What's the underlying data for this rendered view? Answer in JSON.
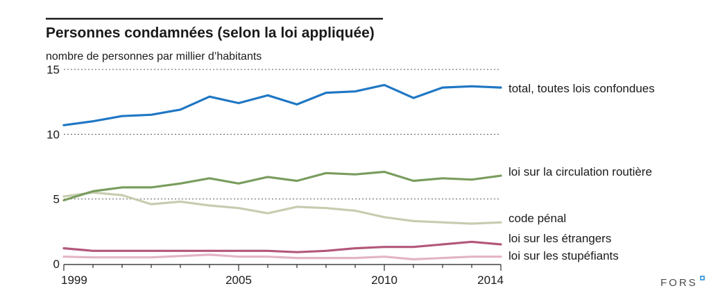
{
  "brand": "FORS",
  "brand_accent_color": "#2a8fd6",
  "chart_data": {
    "type": "line",
    "title": "Personnes condamnées (selon la loi appliquée)",
    "ylabel": "nombre de personnes par millier d’habitants",
    "xlabel": "",
    "x": [
      1999,
      2000,
      2001,
      2002,
      2003,
      2004,
      2005,
      2006,
      2007,
      2008,
      2009,
      2010,
      2011,
      2012,
      2013,
      2014
    ],
    "xlim": [
      1999,
      2014
    ],
    "ylim": [
      0,
      15
    ],
    "x_ticks": [
      1999,
      2005,
      2010,
      2014
    ],
    "y_ticks": [
      0,
      5,
      10,
      15
    ],
    "gridlines_y": [
      5,
      10,
      15
    ],
    "series": [
      {
        "name": "total, toutes lois confondues",
        "color": "#1f77c4",
        "values": [
          10.7,
          11.0,
          11.4,
          11.5,
          11.9,
          12.9,
          12.4,
          13.0,
          12.3,
          13.2,
          13.3,
          13.8,
          12.8,
          13.6,
          13.7,
          13.6
        ]
      },
      {
        "name": "loi sur la circulation routière",
        "color": "#7a9d5e",
        "values": [
          4.9,
          5.6,
          5.9,
          5.9,
          6.2,
          6.6,
          6.2,
          6.7,
          6.4,
          7.0,
          6.9,
          7.1,
          6.4,
          6.6,
          6.5,
          6.8
        ]
      },
      {
        "name": "code pénal",
        "color": "#c6cdb0",
        "values": [
          5.2,
          5.5,
          5.3,
          4.6,
          4.8,
          4.5,
          4.3,
          3.9,
          4.4,
          4.3,
          4.1,
          3.6,
          3.3,
          3.2,
          3.1,
          3.2
        ]
      },
      {
        "name": "loi sur les étrangers",
        "color": "#b3577a",
        "values": [
          1.2,
          1.0,
          1.0,
          1.0,
          1.0,
          1.0,
          1.0,
          1.0,
          0.9,
          1.0,
          1.2,
          1.3,
          1.3,
          1.5,
          1.7,
          1.5
        ]
      },
      {
        "name": "loi sur les stupéfiants",
        "color": "#e3b4c6",
        "values": [
          0.55,
          0.5,
          0.5,
          0.5,
          0.6,
          0.7,
          0.55,
          0.55,
          0.45,
          0.45,
          0.45,
          0.55,
          0.35,
          0.45,
          0.55,
          0.55
        ]
      }
    ]
  }
}
